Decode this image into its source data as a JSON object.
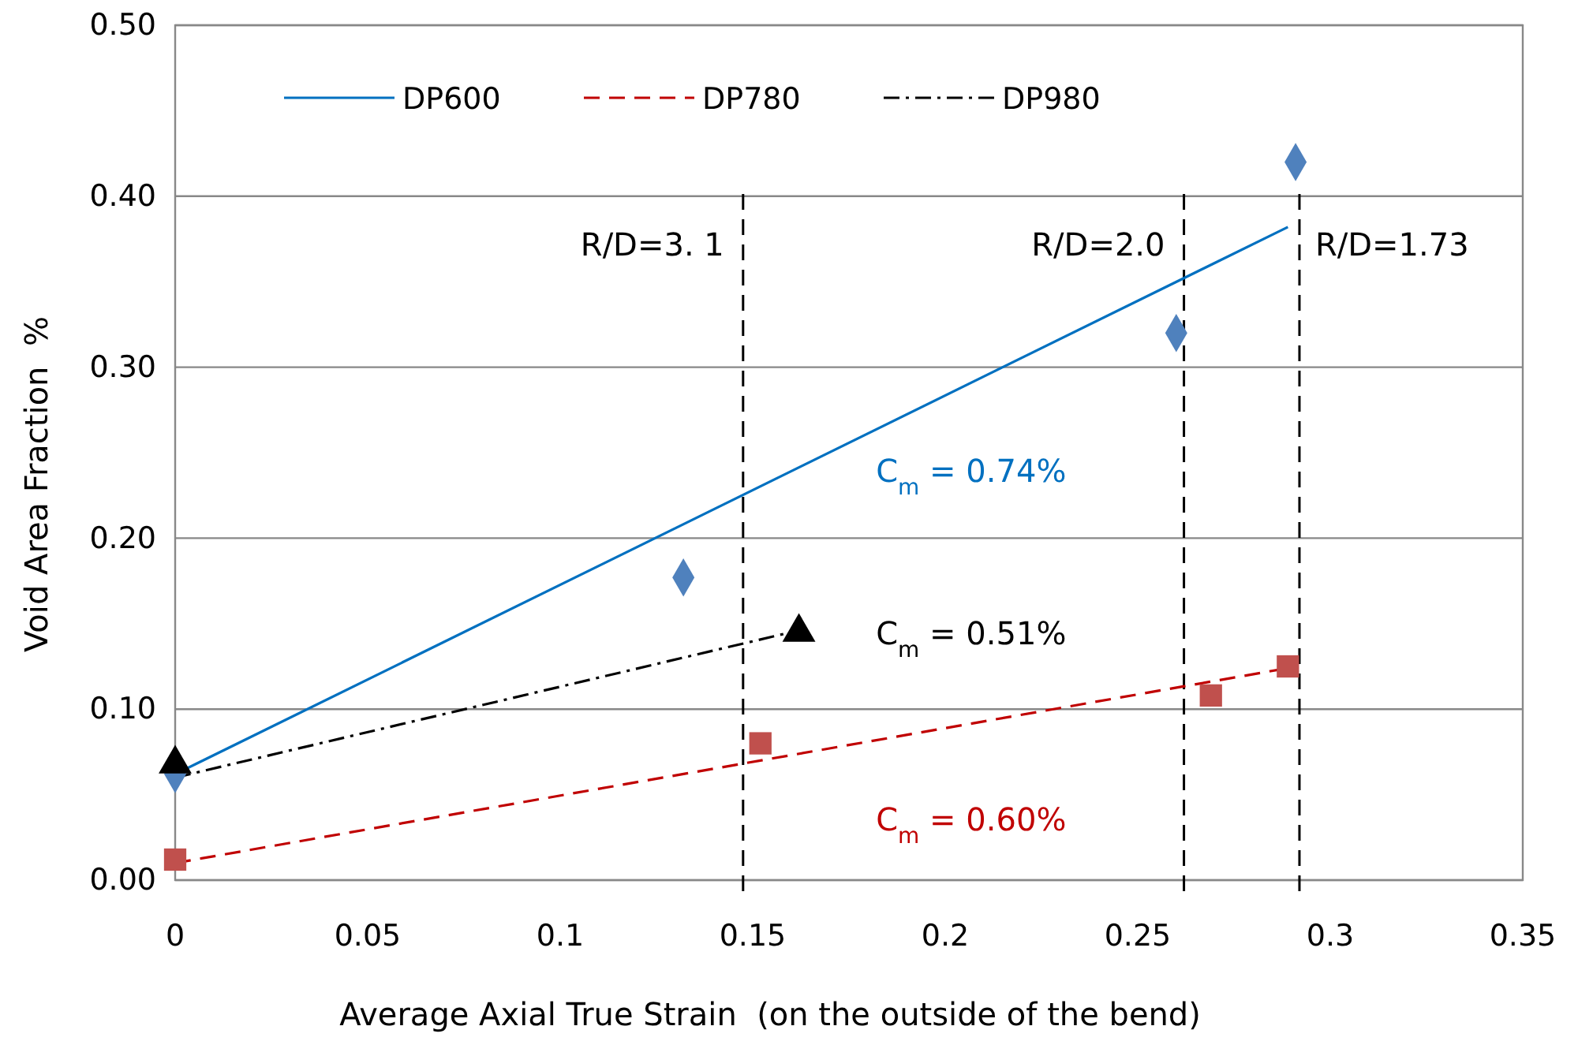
{
  "chart_data": {
    "type": "scatter",
    "xlabel": "Average Axial True Strain  (on the outside of the bend)",
    "ylabel": "Void Area Fraction  %",
    "xlim": [
      0,
      0.35
    ],
    "xticks": [
      0,
      0.05,
      0.1,
      0.15,
      0.2,
      0.25,
      0.3,
      0.35
    ],
    "ylim": [
      0,
      0.5
    ],
    "yticks": [
      {
        "value": 0,
        "label": "0.00"
      },
      {
        "value": 0.1,
        "label": "0.10"
      },
      {
        "value": 0.2,
        "label": "0.20"
      },
      {
        "value": 0.3,
        "label": "0.30"
      },
      {
        "value": 0.4,
        "label": "0.40"
      },
      {
        "value": 0.5,
        "label": "0.50"
      }
    ],
    "grid": "y",
    "legend": "top",
    "series": [
      {
        "name": "DP600",
        "type": "line",
        "color": "#0070c0",
        "line_style": "solid",
        "marker": "none",
        "x": [
          0,
          0.289
        ],
        "values": [
          0.062,
          0.382
        ]
      },
      {
        "name": "DP780",
        "type": "line",
        "color": "#c00000",
        "line_style": "dashed",
        "marker": "none",
        "x": [
          0,
          0.289
        ],
        "values": [
          0.01,
          0.124
        ]
      },
      {
        "name": "DP980",
        "type": "line",
        "color": "#000000",
        "line_style": "dashdot",
        "marker": "none",
        "x": [
          0,
          0.16
        ],
        "values": [
          0.06,
          0.145
        ]
      },
      {
        "type": "scatter",
        "color": "#4f81bd",
        "marker": "diamond",
        "x": [
          0,
          0.132,
          0.26,
          0.291
        ],
        "values": [
          0.062,
          0.177,
          0.32,
          0.42
        ]
      },
      {
        "type": "scatter",
        "color": "#c0504d",
        "marker": "square",
        "x": [
          0,
          0.152,
          0.269,
          0.289
        ],
        "values": [
          0.012,
          0.08,
          0.108,
          0.125
        ]
      },
      {
        "type": "scatter",
        "color": "#000000",
        "marker": "triangle",
        "x": [
          0,
          0.162
        ],
        "values": [
          0.068,
          0.145
        ]
      }
    ],
    "ref_lines": [
      {
        "axis": "x",
        "value": 0.1475,
        "line_style": "dashed",
        "color": "#000000"
      },
      {
        "axis": "x",
        "value": 0.262,
        "line_style": "dashed",
        "color": "#000000"
      },
      {
        "axis": "x",
        "value": 0.292,
        "line_style": "dashed",
        "color": "#000000"
      }
    ],
    "annotations": [
      "C$_{m}$ = 0.74%",
      "C$_{m}$ = 0.60%",
      "C$_{m}$ = 0.51%",
      "R/D=3. 1",
      "R/D=2.0",
      "R/D=1.73"
    ]
  }
}
